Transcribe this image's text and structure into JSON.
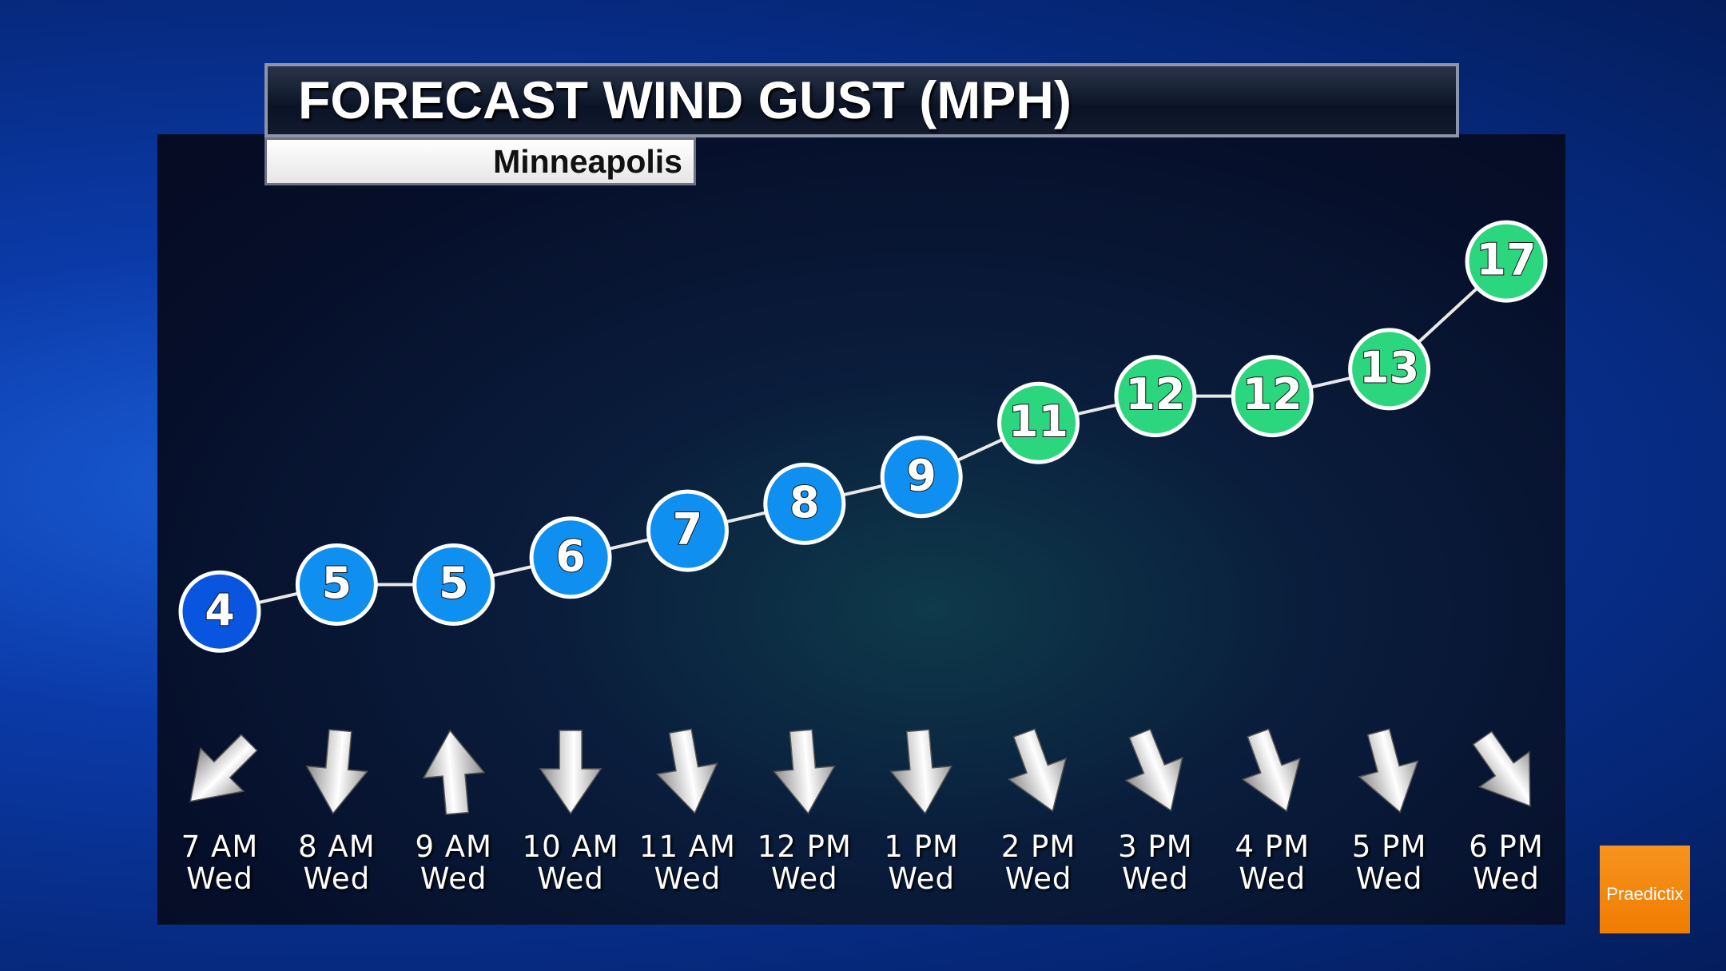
{
  "chart_data": {
    "type": "line",
    "title": "FORECAST WIND GUST (MPH)",
    "subtitle": "Minneapolis",
    "categories": [
      "7 AM\nWed",
      "8 AM\nWed",
      "9 AM\nWed",
      "10 AM\nWed",
      "11 AM\nWed",
      "12 PM\nWed",
      "1 PM\nWed",
      "2 PM\nWed",
      "3 PM\nWed",
      "4 PM\nWed",
      "5 PM\nWed",
      "6 PM\nWed"
    ],
    "values": [
      4,
      5,
      5,
      6,
      7,
      8,
      9,
      11,
      12,
      12,
      13,
      17
    ],
    "point_colors": [
      "#0a55e0",
      "#0f8ff0",
      "#0f8ff0",
      "#0f8ff0",
      "#0f8ff0",
      "#0f8ff0",
      "#0f8ff0",
      "#2bd67e",
      "#2bd67e",
      "#2bd67e",
      "#2bd67e",
      "#2bd67e"
    ],
    "line_color": "#e8e8e8",
    "wind_to_deg": [
      225,
      185,
      355,
      180,
      170,
      175,
      175,
      160,
      158,
      160,
      165,
      145
    ],
    "ylim": [
      0,
      20
    ],
    "logo": "Praedictix"
  }
}
